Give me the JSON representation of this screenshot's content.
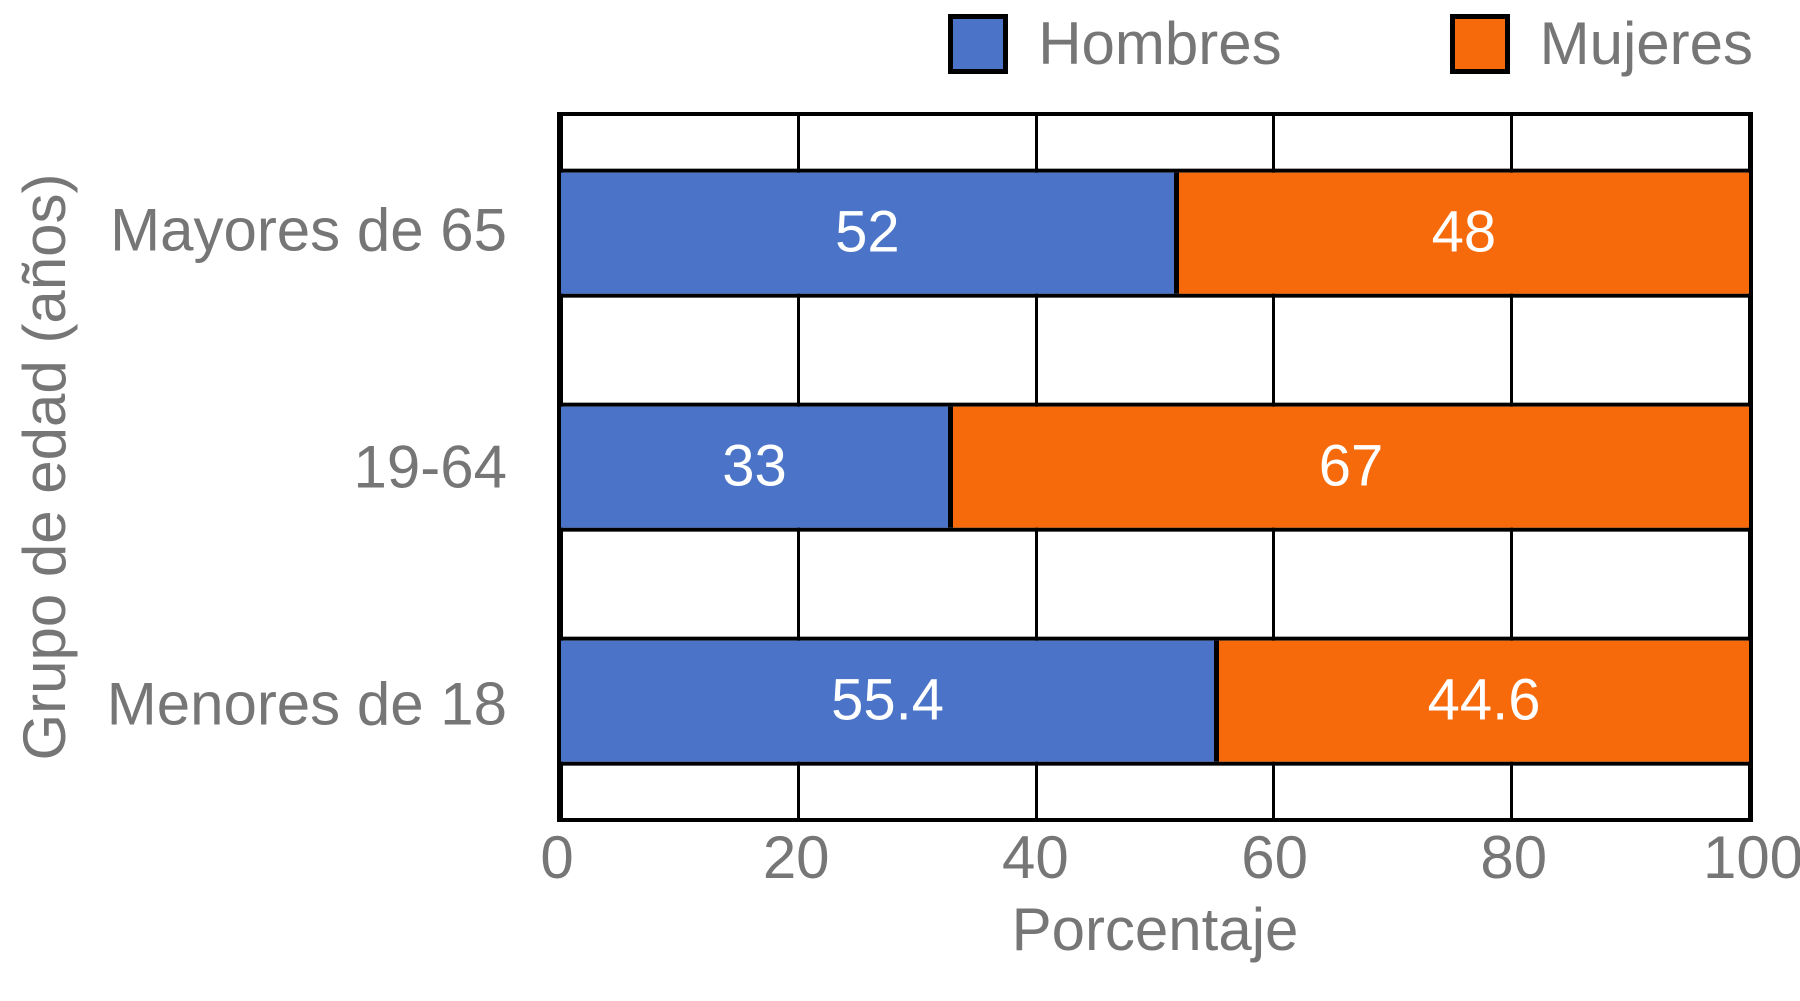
{
  "chart_data": {
    "type": "bar",
    "orientation": "horizontal",
    "stacked": true,
    "title": "",
    "xlabel": "Porcentaje",
    "ylabel": "Grupo de edad (años)",
    "categories": [
      "Mayores de 65",
      "19-64",
      "Menores de 18"
    ],
    "series": [
      {
        "name": "Hombres",
        "color": "#4B74C8",
        "values": [
          52,
          33,
          55.4
        ],
        "labels": [
          "52",
          "33",
          "55.4"
        ]
      },
      {
        "name": "Mujeres",
        "color": "#F66A0B",
        "values": [
          48,
          67,
          44.6
        ],
        "labels": [
          "48",
          "67",
          "44.6"
        ]
      }
    ],
    "xlim": [
      0,
      100
    ],
    "xticks": [
      "0",
      "20",
      "40",
      "60",
      "80",
      "100"
    ],
    "grid": true,
    "legend_position": "top-right",
    "value_label_color": "#ffffff",
    "axis_text_color": "#767676",
    "line_color": "#000000"
  }
}
